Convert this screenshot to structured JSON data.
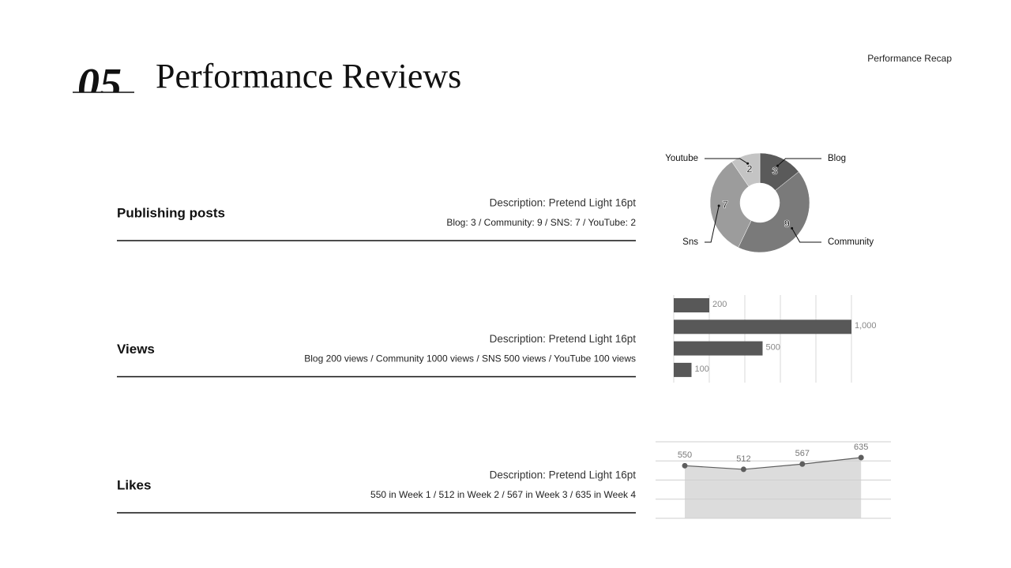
{
  "header": {
    "number": "05",
    "title": "Performance Reviews",
    "tag": "Performance Recap"
  },
  "rows": [
    {
      "label": "Publishing posts",
      "description": "Description: Pretend Light 16pt",
      "detail": "Blog: 3 / Community: 9 / SNS: 7 / YouTube: 2"
    },
    {
      "label": "Views",
      "description": "Description: Pretend Light 16pt",
      "detail": "Blog 200 views / Community 1000 views / SNS 500 views / YouTube 100 views"
    },
    {
      "label": "Likes",
      "description": "Description: Pretend Light 16pt",
      "detail": "550 in Week 1 / 512 in Week 2 / 567 in Week 3 / 635 in Week 4"
    }
  ],
  "chart_data": [
    {
      "type": "pie",
      "categories": [
        "Blog",
        "Community",
        "Sns",
        "Youtube"
      ],
      "values": [
        3,
        9,
        7,
        2
      ],
      "colors": [
        "#5a5a5a",
        "#7a7a7a",
        "#9c9c9c",
        "#c4c4c4"
      ]
    },
    {
      "type": "bar",
      "orientation": "horizontal",
      "values": [
        200,
        1000,
        500,
        100
      ],
      "value_labels": [
        "200",
        "1,000",
        "500",
        "100"
      ],
      "color": "#585858",
      "xlim": [
        0,
        1000
      ],
      "xticks": [
        0,
        200,
        400,
        600,
        800,
        1000
      ],
      "grid": true
    },
    {
      "type": "area",
      "values": [
        550,
        512,
        567,
        635
      ],
      "color": "#5e5e5e",
      "fill": "#dcdcdc",
      "ylim": [
        0,
        800
      ],
      "yticks": [
        0,
        200,
        400,
        600,
        800
      ],
      "grid": true
    }
  ]
}
